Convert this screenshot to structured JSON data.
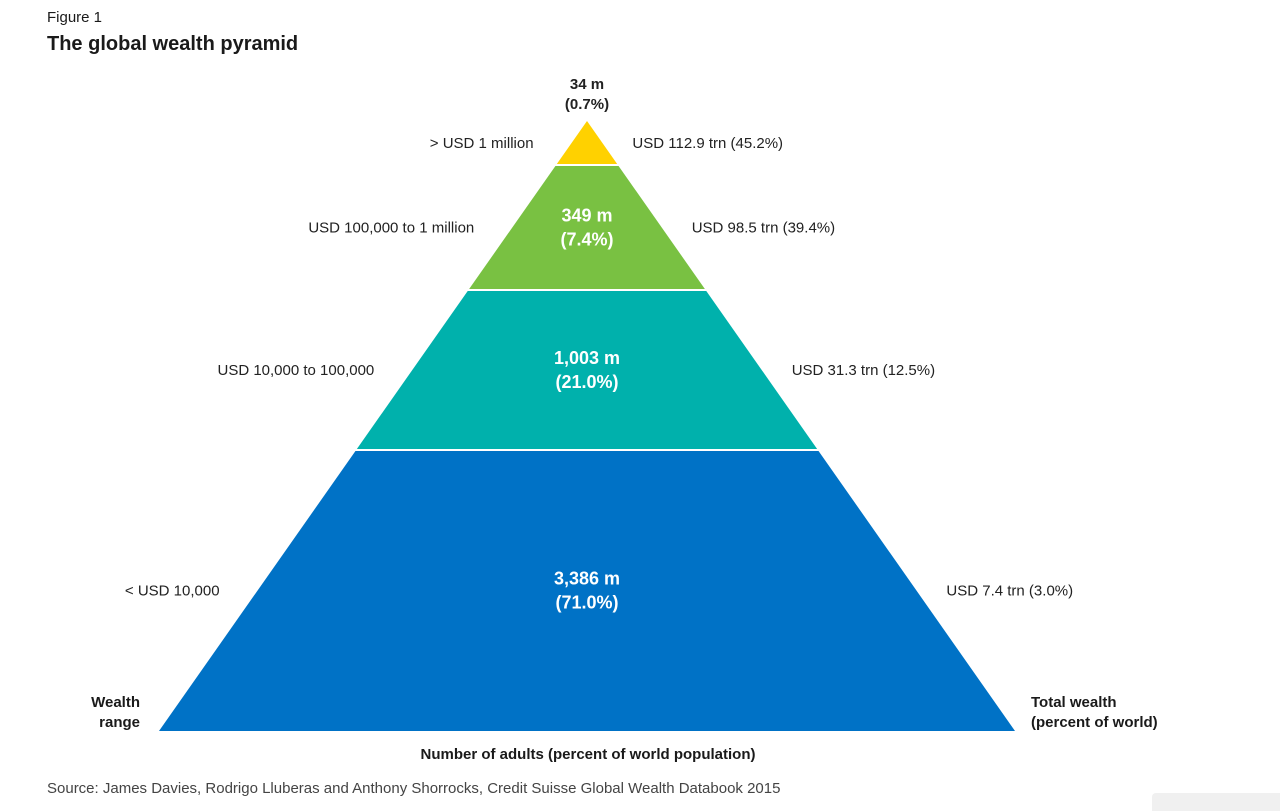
{
  "figure_label": "Figure 1",
  "title": "The global wealth pyramid",
  "left_axis_label_line1": "Wealth",
  "left_axis_label_line2": "range",
  "right_axis_label_line1": "Total wealth",
  "right_axis_label_line2": "(percent of world)",
  "x_axis_label": "Number of adults (percent of world population)",
  "source": "Source: James Davies, Rodrigo Lluberas and Anthony Shorrocks, Credit Suisse Global Wealth Databook 2015",
  "chart_data": {
    "type": "pyramid",
    "title": "The global wealth pyramid",
    "tiers": [
      {
        "wealth_range": "> USD 1 million",
        "adults": "34 m",
        "adults_pct": "(0.7%)",
        "total_wealth": "USD 112.9 trn (45.2%)",
        "color": "#ffd100"
      },
      {
        "wealth_range": "USD 100,000 to 1 million",
        "adults": "349 m",
        "adults_pct": "(7.4%)",
        "total_wealth": "USD 98.5 trn (39.4%)",
        "color": "#79c142"
      },
      {
        "wealth_range": "USD 10,000 to 100,000",
        "adults": "1,003 m",
        "adults_pct": "(21.0%)",
        "total_wealth": "USD 31.3 trn (12.5%)",
        "color": "#00b1ac"
      },
      {
        "wealth_range": "< USD 10,000",
        "adults": "3,386 m",
        "adults_pct": "(71.0%)",
        "total_wealth": "USD 7.4 trn (3.0%)",
        "color": "#0072c6"
      }
    ]
  }
}
